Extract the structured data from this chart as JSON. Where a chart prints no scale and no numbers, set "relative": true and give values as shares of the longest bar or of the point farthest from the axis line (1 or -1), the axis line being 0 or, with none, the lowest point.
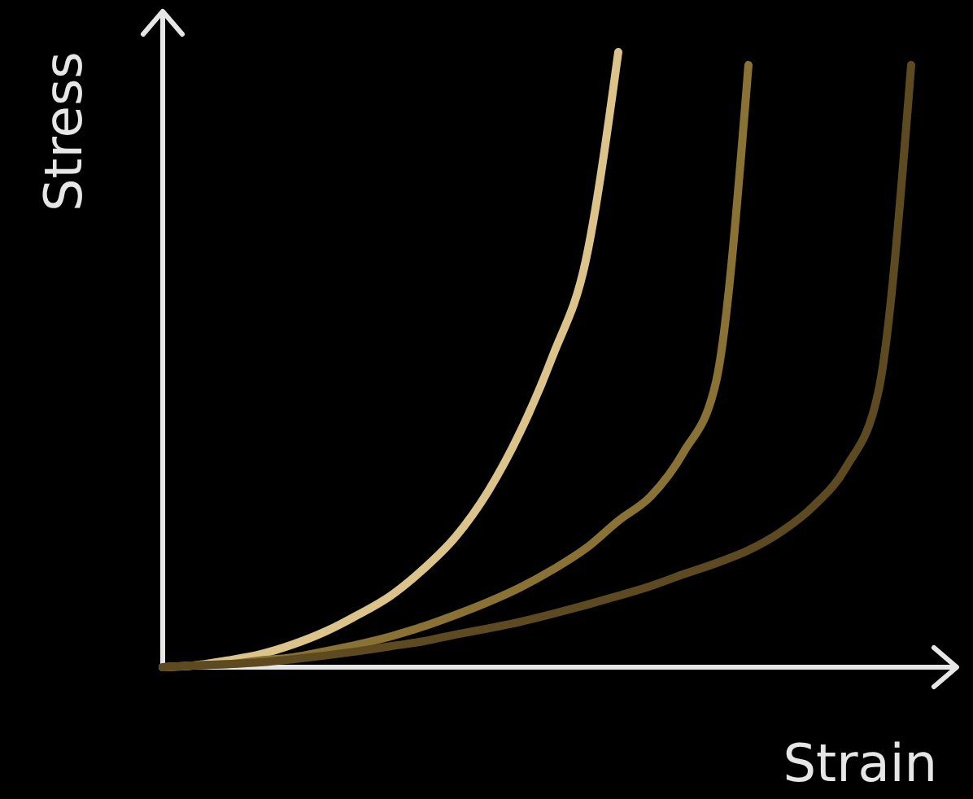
{
  "chart_data": {
    "type": "line",
    "xlabel": "Strain",
    "ylabel": "Stress",
    "relative": true,
    "categories": [
      null,
      null,
      null,
      null,
      null,
      null,
      null,
      null,
      null,
      null,
      null,
      null,
      null,
      null,
      null,
      null,
      null,
      null,
      null,
      null,
      null,
      null,
      null,
      null
    ],
    "series": [
      {
        "color": "#dcc38a",
        "values": [
          0,
          0.003,
          0.011,
          0.021,
          0.037,
          0.058,
          0.085,
          0.116,
          0.159,
          0.212,
          0.286,
          0.384,
          0.508,
          0.661,
          1,
          null,
          null,
          null,
          null,
          null,
          null,
          null,
          null,
          null
        ]
      },
      {
        "color": "#8a7235",
        "values": [
          0,
          0.003,
          0.005,
          0.011,
          0.016,
          0.026,
          0.037,
          0.05,
          0.066,
          0.085,
          0.106,
          0.13,
          0.159,
          0.193,
          0.238,
          0.278,
          0.349,
          0.463,
          0.979,
          null,
          null,
          null,
          null,
          null
        ]
      },
      {
        "color": "#5e4a20",
        "values": [
          0,
          0.003,
          0.005,
          0.008,
          0.013,
          0.019,
          0.026,
          0.034,
          0.042,
          0.053,
          0.063,
          0.074,
          0.087,
          0.101,
          0.116,
          0.132,
          0.151,
          0.169,
          0.19,
          0.22,
          0.262,
          0.325,
          0.45,
          0.979
        ]
      }
    ]
  }
}
